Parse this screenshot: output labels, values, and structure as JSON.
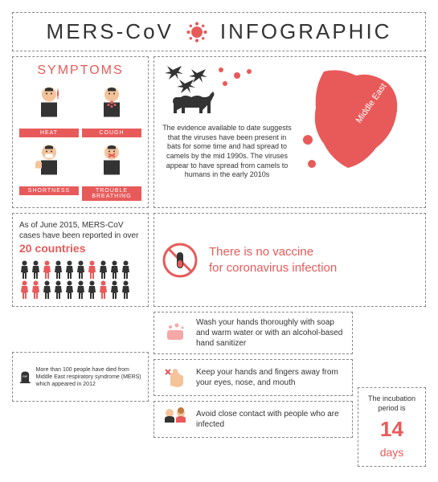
{
  "colors": {
    "accent": "#e85a5a",
    "dark": "#333333",
    "pink": "#f4a8a8",
    "border": "#888888"
  },
  "header": {
    "title_left": "MERS-CoV",
    "title_right": "INFOGRAPHIC"
  },
  "symptoms": {
    "title": "SYMPTOMS",
    "items": [
      {
        "label": "HEAT"
      },
      {
        "label": "COUGH"
      },
      {
        "label": "SHORTNESS"
      },
      {
        "label": "TROUBLE BREATHING"
      }
    ]
  },
  "origin": {
    "text": "The evidence available to date suggests that the viruses have been present in bats for some time and had spread to camels by the mid 1990s. The viruses appear to have spread from camels to humans in the early 2010s",
    "map_label": "Middle East"
  },
  "countries": {
    "prefix": "As of June 2015, MERS-CoV cases have been reported in over ",
    "number": "20 countries",
    "people_count": 20,
    "red_indices": [
      2,
      6,
      10,
      11,
      17
    ]
  },
  "vaccine": {
    "line1": "There is no vaccine",
    "line2": "for coronavirus infection"
  },
  "tips": [
    {
      "icon": "soap",
      "text": "Wash your hands thoroughly with soap and warm water or with an alcohol-based hand sanitizer"
    },
    {
      "icon": "hand",
      "text": "Keep your hands and fingers away from your eyes, nose, and mouth"
    },
    {
      "icon": "avoid",
      "text": "Avoid close contact with people who are infected"
    }
  ],
  "rip": {
    "label": "RIP",
    "text": "More than 100 people have died from Middle East respiratory syndrome (MERS) which appeared in 2012"
  },
  "incubation": {
    "prefix": "The incubation period is",
    "number": "14",
    "unit": "days"
  }
}
